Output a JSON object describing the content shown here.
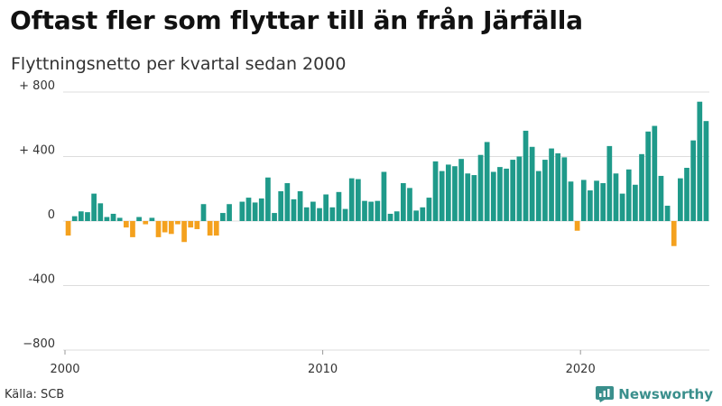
{
  "header": {
    "title": "Oftast fler som flyttar till än från Järfälla",
    "subtitle": "Flyttningsnetto per kvartal sedan 2000"
  },
  "footer": {
    "source": "Källa: SCB",
    "brand": "Newsworthy"
  },
  "colors": {
    "positive": "#1f9a8a",
    "negative": "#f4a11e",
    "grid": "#dddddd",
    "brand": "#3a8f8c"
  },
  "chart_data": {
    "type": "bar",
    "title": "Oftast fler som flyttar till än från Järfälla",
    "subtitle": "Flyttningsnetto per kvartal sedan 2000",
    "xlabel": "",
    "ylabel": "",
    "ylim": [
      -800,
      800
    ],
    "yticks": [
      {
        "value": 800,
        "label": "+ 800"
      },
      {
        "value": 400,
        "label": "+ 400"
      },
      {
        "value": 0,
        "label": "0"
      },
      {
        "value": -400,
        "label": "-400"
      },
      {
        "value": -800,
        "label": "−800"
      }
    ],
    "xticks": [
      {
        "value": 2000,
        "label": "2000"
      },
      {
        "value": 2010,
        "label": "2010"
      },
      {
        "value": 2020,
        "label": "2020"
      }
    ],
    "xlim": [
      2000,
      2025
    ],
    "grid": true,
    "x_start": "2000 Q1",
    "values": [
      -90,
      30,
      60,
      55,
      170,
      110,
      25,
      45,
      20,
      -40,
      -100,
      25,
      -20,
      20,
      -100,
      -70,
      -80,
      -20,
      -130,
      -40,
      -50,
      105,
      -90,
      -90,
      50,
      105,
      0,
      120,
      145,
      115,
      140,
      270,
      50,
      185,
      235,
      135,
      185,
      85,
      120,
      80,
      165,
      85,
      180,
      75,
      265,
      260,
      125,
      120,
      125,
      305,
      45,
      60,
      235,
      205,
      65,
      85,
      145,
      370,
      310,
      350,
      340,
      385,
      295,
      285,
      410,
      490,
      305,
      335,
      325,
      380,
      400,
      560,
      460,
      310,
      380,
      450,
      420,
      395,
      245,
      -60,
      255,
      190,
      250,
      235,
      465,
      295,
      170,
      320,
      225,
      415,
      555,
      590,
      280,
      95,
      -155,
      265,
      330,
      500,
      740,
      620
    ]
  }
}
